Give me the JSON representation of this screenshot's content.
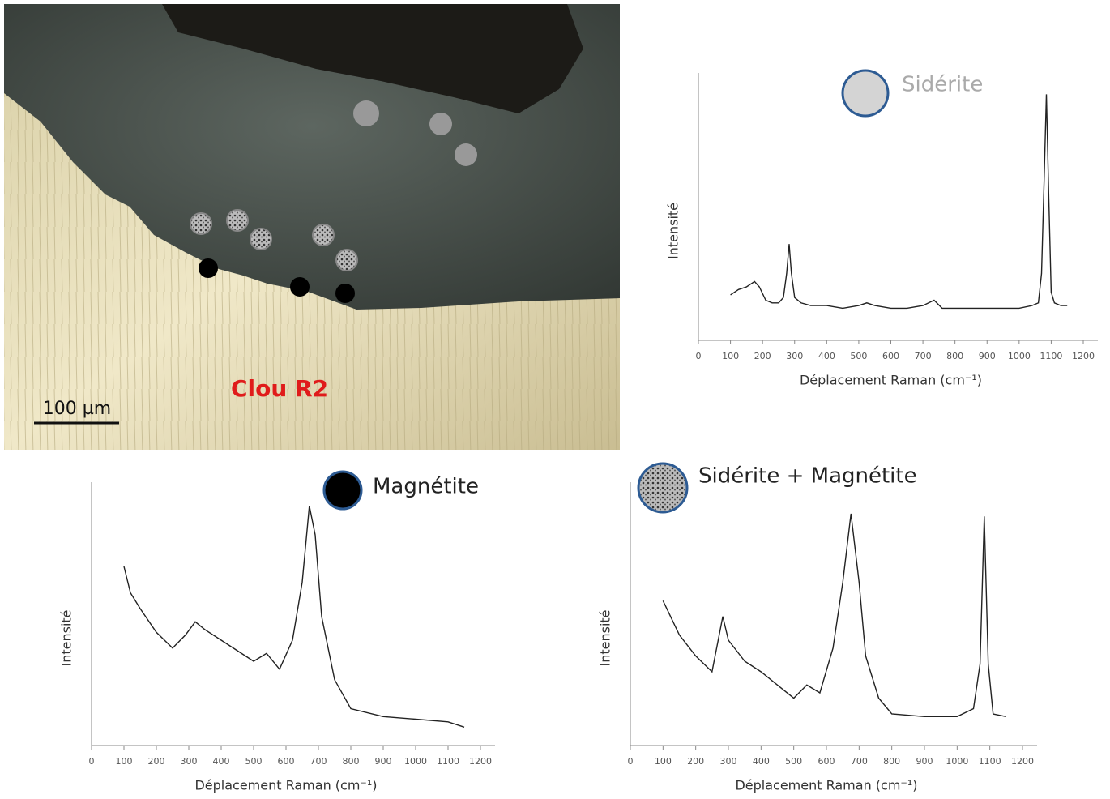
{
  "micrograph": {
    "label": "Clou R2",
    "scale_bar": "100 µm"
  },
  "chart_data": [
    {
      "type": "line",
      "title": "Sidérite",
      "ylabel": "Intensité",
      "xlabel": "Déplacement Raman (cm⁻¹)",
      "xlim": [
        0,
        1200
      ],
      "xticks": [
        0,
        100,
        200,
        300,
        400,
        500,
        600,
        700,
        800,
        900,
        1000,
        1100,
        1200
      ],
      "ylim": [
        0,
        100
      ],
      "color": "#222222",
      "x": [
        100,
        125,
        150,
        175,
        190,
        210,
        230,
        250,
        265,
        275,
        283,
        290,
        300,
        320,
        350,
        400,
        450,
        500,
        525,
        550,
        600,
        650,
        700,
        735,
        760,
        800,
        850,
        900,
        950,
        1000,
        1040,
        1060,
        1070,
        1078,
        1085,
        1092,
        1100,
        1110,
        1130,
        1150
      ],
      "values": [
        17,
        19,
        20,
        22,
        20,
        15,
        14,
        14,
        16,
        25,
        36,
        25,
        16,
        14,
        13,
        13,
        12,
        13,
        14,
        13,
        12,
        12,
        13,
        15,
        12,
        12,
        12,
        12,
        12,
        12,
        13,
        14,
        25,
        60,
        92,
        55,
        18,
        14,
        13,
        13
      ]
    },
    {
      "type": "line",
      "title": "Magnétite",
      "ylabel": "Intensité",
      "xlabel": "Déplacement Raman (cm⁻¹)",
      "xlim": [
        0,
        1200
      ],
      "xticks": [
        0,
        100,
        200,
        300,
        400,
        500,
        600,
        700,
        800,
        900,
        1000,
        1100,
        1200
      ],
      "ylim": [
        0,
        100
      ],
      "color": "#222222",
      "x": [
        100,
        120,
        150,
        200,
        250,
        290,
        320,
        350,
        400,
        450,
        500,
        540,
        580,
        620,
        650,
        672,
        690,
        710,
        750,
        800,
        900,
        1000,
        1100,
        1150
      ],
      "values": [
        68,
        58,
        52,
        43,
        37,
        42,
        47,
        44,
        40,
        36,
        32,
        35,
        29,
        40,
        62,
        91,
        80,
        49,
        25,
        14,
        11,
        10,
        9,
        7
      ]
    },
    {
      "type": "line",
      "title": "Sidérite + Magnétite",
      "ylabel": "Intensité",
      "xlabel": "Déplacement Raman (cm⁻¹)",
      "xlim": [
        0,
        1200
      ],
      "xticks": [
        0,
        100,
        200,
        300,
        400,
        500,
        600,
        700,
        800,
        900,
        1000,
        1100,
        1200
      ],
      "ylim": [
        0,
        100
      ],
      "color": "#222222",
      "x": [
        100,
        150,
        200,
        250,
        283,
        300,
        350,
        400,
        450,
        500,
        540,
        580,
        620,
        650,
        675,
        700,
        720,
        760,
        800,
        900,
        1000,
        1050,
        1070,
        1083,
        1095,
        1110,
        1150
      ],
      "values": [
        55,
        42,
        34,
        28,
        49,
        40,
        32,
        28,
        23,
        18,
        23,
        20,
        37,
        62,
        88,
        62,
        34,
        18,
        12,
        11,
        11,
        14,
        31,
        87,
        31,
        12,
        11
      ]
    }
  ]
}
